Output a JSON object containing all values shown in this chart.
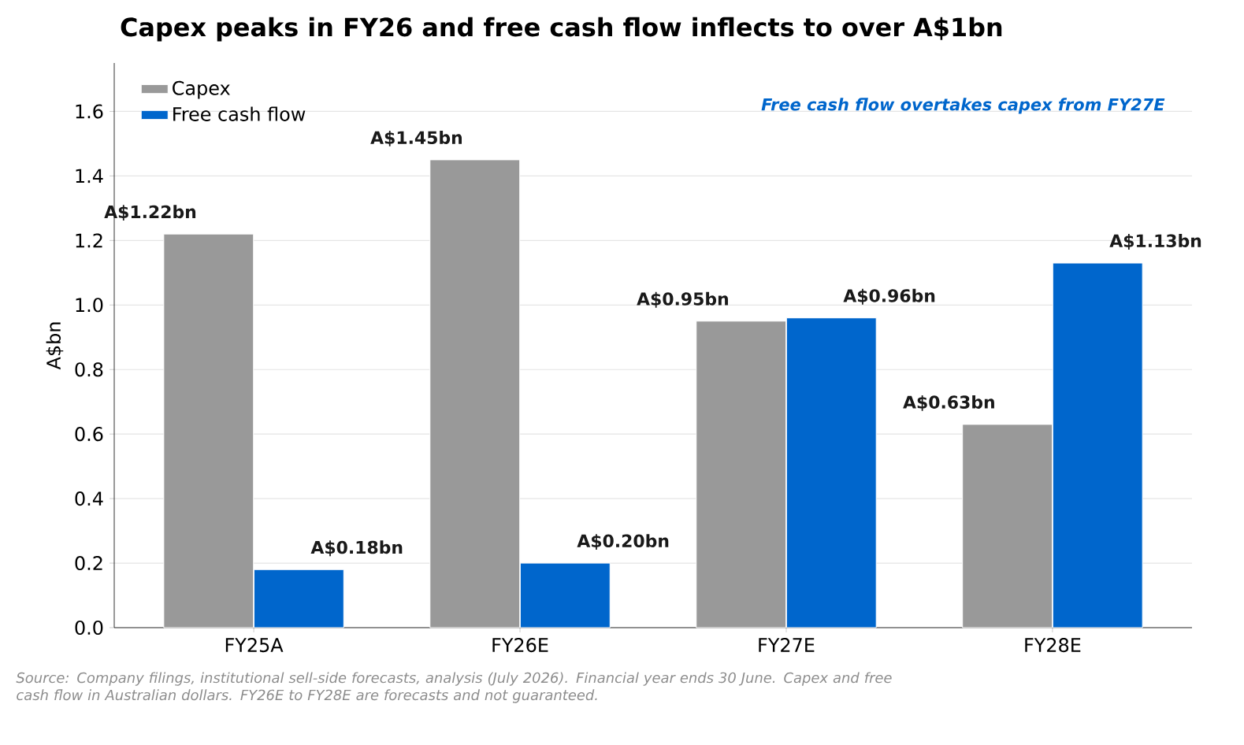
{
  "chart_data": {
    "type": "bar",
    "title": "Capex peaks in FY26 and free cash flow inflects to over A$1bn",
    "ylabel": "A$bn",
    "categories": [
      "FY25A",
      "FY26E",
      "FY27E",
      "FY28E"
    ],
    "series": [
      {
        "name": "Capex",
        "color": "#999999",
        "values": [
          1.22,
          1.45,
          0.95,
          0.63
        ],
        "value_labels": [
          "A$1.22bn",
          "A$1.45bn",
          "A$0.95bn",
          "A$0.63bn"
        ]
      },
      {
        "name": "Free cash flow",
        "color": "#0066cc",
        "values": [
          0.18,
          0.2,
          0.96,
          1.13
        ],
        "value_labels": [
          "A$0.18bn",
          "A$0.20bn",
          "A$0.96bn",
          "A$1.13bn"
        ]
      }
    ],
    "ylim": [
      0,
      1.75
    ],
    "yticks": [
      {
        "value": 0,
        "label": "0.0"
      },
      0.2,
      0.4,
      0.6,
      0.8,
      {
        "value": 1.0,
        "label": "1.0"
      },
      1.2,
      1.4,
      1.6
    ],
    "grid": "y",
    "legend": "top left",
    "annotations": [
      "Free cash flow overtakes capex from FY27E",
      "Source: Company filings, institutional sell-side forecasts, analysis (July 2026). Financial year ends 30 June. Capex and free cash flow in Australian dollars. FY26E to FY28E are forecasts and not guaranteed."
    ]
  }
}
